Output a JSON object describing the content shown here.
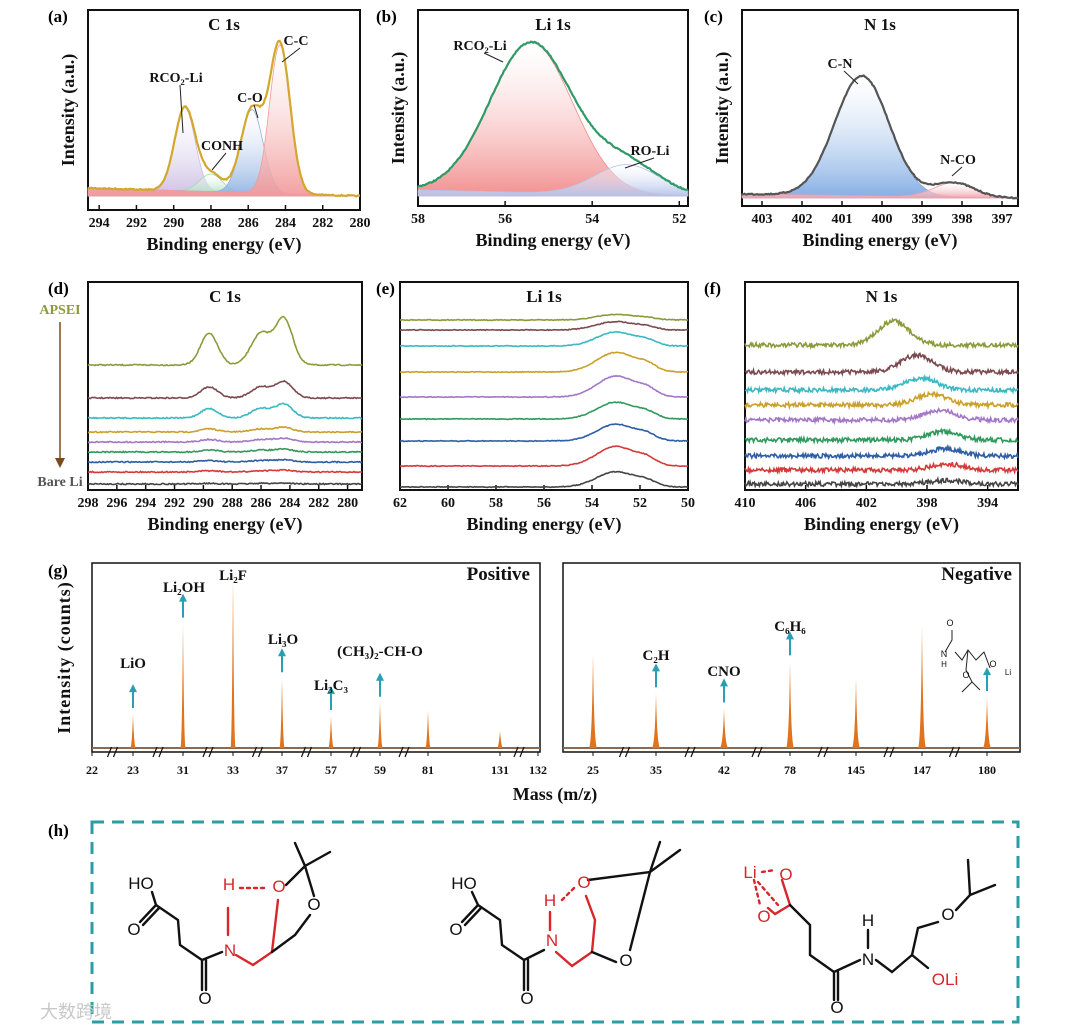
{
  "panel_letters": [
    "(a)",
    "(b)",
    "(c)",
    "(d)",
    "(e)",
    "(f)",
    "(g)",
    "(h)"
  ],
  "watermark": "大数跨境",
  "chart_data": [
    {
      "id": "a",
      "type": "line",
      "title": "C 1s",
      "xlabel": "Binding energy (eV)",
      "ylabel": "Intensity (a.u.)",
      "xlim": [
        294.6,
        280
      ],
      "xticks": [
        294,
        292,
        290,
        288,
        286,
        284,
        282,
        280
      ],
      "components": [
        {
          "name": "RCO₂-Li",
          "center": 289.4,
          "sigma": 0.55,
          "height": 0.52,
          "color": "#cbbde3"
        },
        {
          "name": "CONH",
          "center": 288.0,
          "sigma": 0.6,
          "height": 0.11,
          "color": "#9fdcb4"
        },
        {
          "name": "C-O",
          "center": 285.8,
          "sigma": 0.6,
          "height": 0.52,
          "color": "#8fb1e2"
        },
        {
          "name": "C-C",
          "center": 284.3,
          "sigma": 0.55,
          "height": 0.93,
          "color": "#f29a9a"
        }
      ],
      "envelope_color": "#d4a72c"
    },
    {
      "id": "b",
      "type": "line",
      "title": "Li 1s",
      "xlabel": "Binding energy (eV)",
      "ylabel": "Intensity (a.u.)",
      "xlim": [
        58,
        51.8
      ],
      "xticks": [
        58,
        56,
        54,
        52
      ],
      "components": [
        {
          "name": "RCO₂-Li",
          "center": 55.4,
          "sigma": 0.95,
          "height": 1.0,
          "color": "#f28a8a"
        },
        {
          "name": "RO-Li",
          "center": 53.2,
          "sigma": 0.75,
          "height": 0.2,
          "color": "#b4c2ea"
        }
      ],
      "envelope_color": "#2f9a66"
    },
    {
      "id": "c",
      "type": "line",
      "title": "N 1s",
      "xlabel": "Binding energy (eV)",
      "ylabel": "Intensity (a.u.)",
      "xlim": [
        403.5,
        396.6
      ],
      "xticks": [
        403,
        402,
        401,
        400,
        399,
        398,
        397
      ],
      "components": [
        {
          "name": "C-N",
          "center": 400.5,
          "sigma": 0.68,
          "height": 1.0,
          "color": "#7eaae2"
        },
        {
          "name": "N-CO",
          "center": 398.2,
          "sigma": 0.5,
          "height": 0.12,
          "color": "#f0a0a8"
        }
      ],
      "envelope_color": "#555555"
    },
    {
      "id": "d",
      "type": "line",
      "title": "C 1s",
      "xlabel": "Binding energy (eV)",
      "xlim": [
        298,
        279
      ],
      "xticks": [
        298,
        296,
        294,
        292,
        290,
        288,
        286,
        284,
        282,
        280
      ],
      "stack_top_label": "APSEI",
      "stack_bottom_label": "Bare Li",
      "peaks": [
        {
          "center": 289.6,
          "sigma": 0.6,
          "height": 0.45
        },
        {
          "center": 286.0,
          "sigma": 0.7,
          "height": 0.45
        },
        {
          "center": 284.4,
          "sigma": 0.6,
          "height": 0.65
        }
      ],
      "series": [
        {
          "color": "#8c9a3c",
          "relative_intensity": 1.0
        },
        {
          "color": "#7b4a4f",
          "relative_intensity": 0.35
        },
        {
          "color": "#3cb8c2",
          "relative_intensity": 0.3
        },
        {
          "color": "#caa02a",
          "relative_intensity": 0.1
        },
        {
          "color": "#a377c6",
          "relative_intensity": 0.08
        },
        {
          "color": "#2f9a5c",
          "relative_intensity": 0.06
        },
        {
          "color": "#2d5ea6",
          "relative_intensity": 0.05
        },
        {
          "color": "#d43a3a",
          "relative_intensity": 0.04
        },
        {
          "color": "#444444",
          "relative_intensity": 0.02
        }
      ]
    },
    {
      "id": "e",
      "type": "line",
      "title": "Li 1s",
      "xlabel": "Binding energy (eV)",
      "xlim": [
        62,
        50
      ],
      "xticks": [
        62,
        60,
        58,
        56,
        54,
        52,
        50
      ],
      "peaks": [
        {
          "center": 53.0,
          "sigma": 0.8,
          "height": 1.0
        },
        {
          "center": 51.7,
          "sigma": 0.4,
          "height": 0.3
        }
      ],
      "series": [
        {
          "color": "#8c9a3c",
          "relative_intensity": 0.2
        },
        {
          "color": "#7b4a4f",
          "relative_intensity": 0.3
        },
        {
          "color": "#3cb8c2",
          "relative_intensity": 0.5
        },
        {
          "color": "#caa02a",
          "relative_intensity": 0.7
        },
        {
          "color": "#a377c6",
          "relative_intensity": 0.75
        },
        {
          "color": "#2f9a5c",
          "relative_intensity": 0.6
        },
        {
          "color": "#2d5ea6",
          "relative_intensity": 0.6
        },
        {
          "color": "#d43a3a",
          "relative_intensity": 0.7
        },
        {
          "color": "#444444",
          "relative_intensity": 0.55
        }
      ]
    },
    {
      "id": "f",
      "type": "line",
      "title": "N 1s",
      "xlabel": "Binding energy (eV)",
      "xlim": [
        410,
        392
      ],
      "xticks": [
        410,
        406,
        402,
        398,
        394
      ],
      "peaks": [
        {
          "center": 400.2,
          "sigma": 0.8,
          "height": 1.0
        }
      ],
      "series": [
        {
          "color": "#8c9a3c",
          "relative_intensity": 1.0,
          "shift": 0
        },
        {
          "color": "#7b4a4f",
          "relative_intensity": 0.7,
          "shift": -1.5
        },
        {
          "color": "#3cb8c2",
          "relative_intensity": 0.5,
          "shift": -1.8
        },
        {
          "color": "#caa02a",
          "relative_intensity": 0.45,
          "shift": -2.5
        },
        {
          "color": "#a377c6",
          "relative_intensity": 0.4,
          "shift": -3.0
        },
        {
          "color": "#2f9a5c",
          "relative_intensity": 0.35,
          "shift": -3.2
        },
        {
          "color": "#2d5ea6",
          "relative_intensity": 0.3,
          "shift": -3.4
        },
        {
          "color": "#d43a3a",
          "relative_intensity": 0.25,
          "shift": -3.5
        },
        {
          "color": "#444444",
          "relative_intensity": 0.15,
          "shift": -3.5
        }
      ]
    },
    {
      "id": "g-positive",
      "type": "bar",
      "title": "Positive",
      "xlabel": "Mass (m/z)",
      "ylabel": "Intensity (counts)",
      "tick_labels": [
        "22",
        "23",
        "31",
        "33",
        "37",
        "57",
        "59",
        "81",
        "131",
        "132"
      ],
      "peaks": [
        {
          "mass": "23",
          "value": 0.18,
          "label": "LiO",
          "arrow": true
        },
        {
          "mass": "31",
          "value": 0.66,
          "label": "Li₂OH",
          "arrow": true
        },
        {
          "mass": "33",
          "value": 0.9,
          "label": "Li₂F",
          "arrow": false
        },
        {
          "mass": "37",
          "value": 0.37,
          "label": "Li₃O",
          "arrow": true
        },
        {
          "mass": "57",
          "value": 0.17,
          "label": "Li₃C₃",
          "arrow": true
        },
        {
          "mass": "59",
          "value": 0.24,
          "label": "(CH₃)₂-CH-O",
          "arrow": true
        },
        {
          "mass": "81",
          "value": 0.2,
          "label": "",
          "arrow": false
        },
        {
          "mass": "131",
          "value": 0.09,
          "label": "",
          "arrow": false
        }
      ],
      "color": "#e0731e",
      "arrow_color": "#2a9fb4"
    },
    {
      "id": "g-negative",
      "type": "bar",
      "title": "Negative",
      "xlabel": "Mass (m/z)",
      "tick_labels": [
        "25",
        "35",
        "42",
        "78",
        "145",
        "147",
        "180"
      ],
      "peaks": [
        {
          "mass": "25",
          "value": 0.5,
          "label": "",
          "arrow": false
        },
        {
          "mass": "35",
          "value": 0.29,
          "label": "C₂H",
          "arrow": true
        },
        {
          "mass": "42",
          "value": 0.21,
          "label": "CNO",
          "arrow": true
        },
        {
          "mass": "78",
          "value": 0.46,
          "label": "C₆H₆",
          "arrow": true
        },
        {
          "mass": "145",
          "value": 0.37,
          "label": "",
          "arrow": false
        },
        {
          "mass": "147",
          "value": 0.65,
          "label": "",
          "arrow": false
        },
        {
          "mass": "180",
          "value": 0.27,
          "label": "",
          "arrow": true
        }
      ],
      "inset_structure_atoms": [
        "O",
        "N",
        "H",
        "O",
        "O",
        "Li"
      ],
      "color": "#e0731e",
      "arrow_color": "#2a9fb4"
    }
  ],
  "structures": {
    "border_color": "#2a9da5",
    "s1": [
      "HO",
      "O",
      "N",
      "H",
      "O",
      "O"
    ],
    "s2": [
      "HO",
      "O",
      "N",
      "H",
      "O",
      "O"
    ],
    "s3": [
      "Li",
      "O",
      "O",
      "O",
      "N",
      "H",
      "O",
      "OLi"
    ]
  }
}
